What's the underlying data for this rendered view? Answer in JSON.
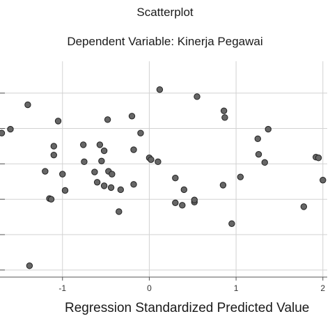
{
  "title": "Scatterplot",
  "subtitle": "Dependent Variable: Kinerja Pegawai",
  "chart_data": {
    "type": "scatter",
    "title": "Scatterplot",
    "subtitle": "Dependent Variable: Kinerja Pegawai",
    "xlabel": "Regression Standardized Predicted Value",
    "ylabel": "",
    "x_ticks": [
      "-1",
      "0",
      "1",
      "2"
    ],
    "x_tick_values": [
      -1,
      0,
      1,
      2
    ],
    "xlim": [
      -1.72,
      2.05
    ],
    "ylim": [
      -3.2,
      2.9
    ],
    "grid": true,
    "point_color": "#666666",
    "point_edge_color": "#222222",
    "points": [
      {
        "x": -1.7,
        "y": 0.87
      },
      {
        "x": -1.6,
        "y": 0.98
      },
      {
        "x": -1.4,
        "y": 1.67
      },
      {
        "x": -1.38,
        "y": -2.88
      },
      {
        "x": -1.2,
        "y": -0.21
      },
      {
        "x": -1.15,
        "y": -0.98
      },
      {
        "x": -1.13,
        "y": -1.0
      },
      {
        "x": -1.1,
        "y": 0.5
      },
      {
        "x": -1.1,
        "y": 0.25
      },
      {
        "x": -1.05,
        "y": 1.21
      },
      {
        "x": -1.0,
        "y": -0.29
      },
      {
        "x": -0.97,
        "y": -0.75
      },
      {
        "x": -0.76,
        "y": 0.54
      },
      {
        "x": -0.75,
        "y": 0.06
      },
      {
        "x": -0.63,
        "y": -0.23
      },
      {
        "x": -0.6,
        "y": -0.52
      },
      {
        "x": -0.57,
        "y": 0.54
      },
      {
        "x": -0.55,
        "y": 0.08
      },
      {
        "x": -0.52,
        "y": 0.37
      },
      {
        "x": -0.52,
        "y": -0.62
      },
      {
        "x": -0.48,
        "y": 1.25
      },
      {
        "x": -0.47,
        "y": -0.21
      },
      {
        "x": -0.44,
        "y": -0.67
      },
      {
        "x": -0.43,
        "y": -0.29
      },
      {
        "x": -0.35,
        "y": -1.35
      },
      {
        "x": -0.33,
        "y": -0.73
      },
      {
        "x": -0.2,
        "y": 1.35
      },
      {
        "x": -0.18,
        "y": -0.58
      },
      {
        "x": -0.18,
        "y": 0.4
      },
      {
        "x": -0.1,
        "y": 0.87
      },
      {
        "x": 0.0,
        "y": 0.17
      },
      {
        "x": 0.02,
        "y": 0.12
      },
      {
        "x": 0.1,
        "y": 0.06
      },
      {
        "x": 0.12,
        "y": 2.1
      },
      {
        "x": 0.3,
        "y": -1.1
      },
      {
        "x": 0.3,
        "y": -0.4
      },
      {
        "x": 0.38,
        "y": -1.17
      },
      {
        "x": 0.4,
        "y": -0.73
      },
      {
        "x": 0.52,
        "y": -1.08
      },
      {
        "x": 0.52,
        "y": -1.02
      },
      {
        "x": 0.55,
        "y": 1.9
      },
      {
        "x": 0.85,
        "y": -0.6
      },
      {
        "x": 0.86,
        "y": 1.5
      },
      {
        "x": 0.87,
        "y": 1.31
      },
      {
        "x": 0.95,
        "y": -1.69
      },
      {
        "x": 1.05,
        "y": -0.37
      },
      {
        "x": 1.25,
        "y": 0.71
      },
      {
        "x": 1.26,
        "y": 0.27
      },
      {
        "x": 1.33,
        "y": 0.04
      },
      {
        "x": 1.37,
        "y": 0.98
      },
      {
        "x": 1.78,
        "y": -1.21
      },
      {
        "x": 1.92,
        "y": 0.19
      },
      {
        "x": 1.95,
        "y": 0.17
      },
      {
        "x": 2.0,
        "y": -0.46
      }
    ]
  }
}
